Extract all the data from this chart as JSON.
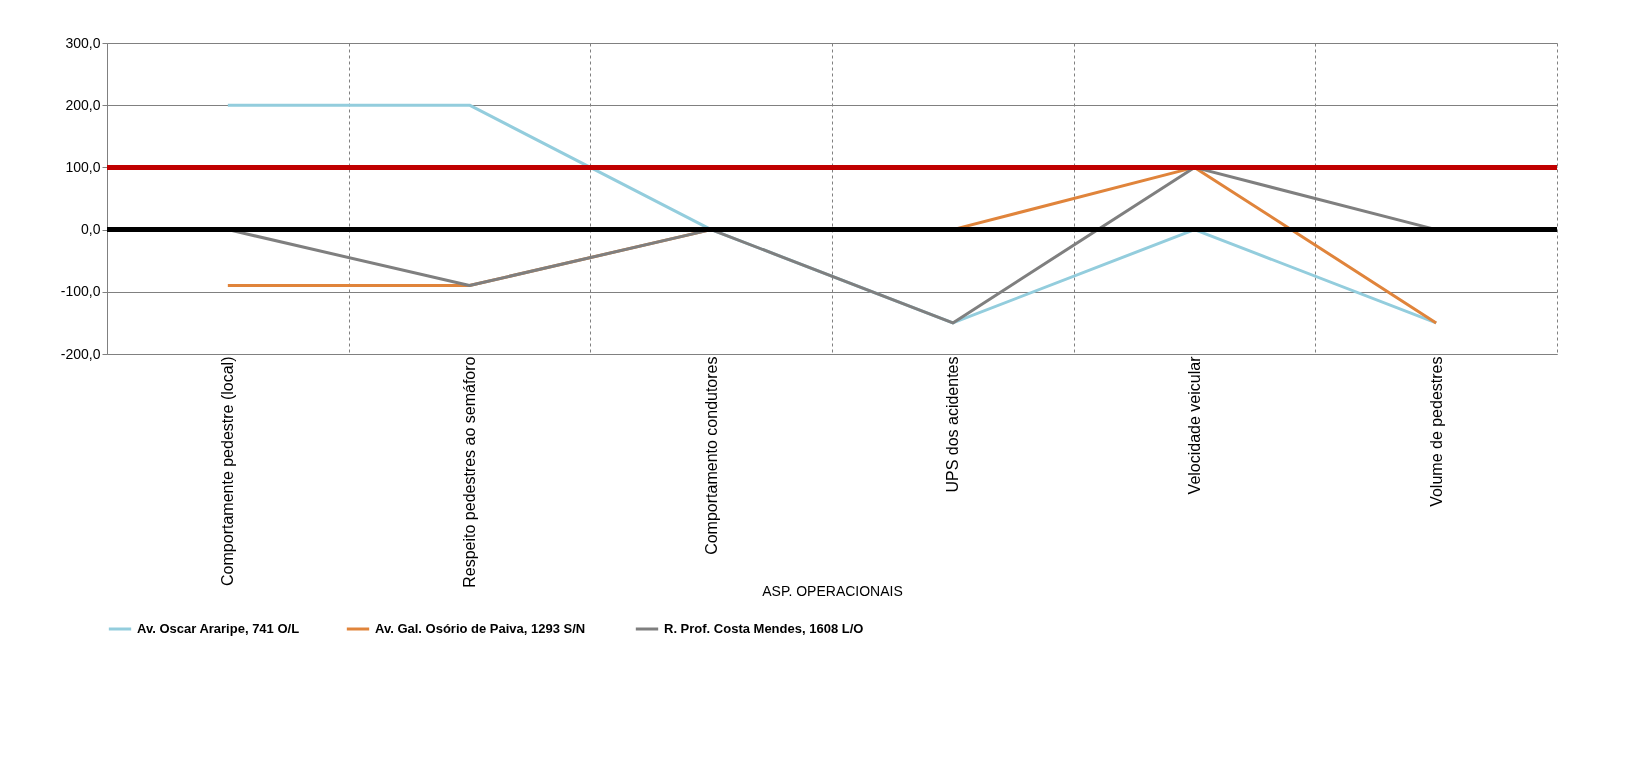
{
  "chart_data": {
    "type": "line",
    "xlabel": "ASP. OPERACIONAIS",
    "categories": [
      "Comportamente pedestre (local)",
      "Respeito pedestres ao semáforo",
      "Comportamento condutores",
      "UPS dos acidentes",
      "Velocidade veicular",
      "Volume de pedestres"
    ],
    "series": [
      {
        "name": "Av. Oscar Araripe, 741 O/L",
        "color": "#93cddd",
        "values": [
          200,
          200,
          0,
          -150,
          0,
          -150
        ]
      },
      {
        "name": "Av. Gal. Osório de Paiva,  1293 S/N",
        "color": "#e0843b",
        "values": [
          -90,
          -90,
          0,
          0,
          100,
          -150
        ]
      },
      {
        "name": "R. Prof. Costa Mendes, 1608 L/O",
        "color": "#7f7f7f",
        "values": [
          0,
          -90,
          0,
          -150,
          100,
          0
        ]
      }
    ],
    "ylim": [
      -200,
      300
    ],
    "yticks": [
      {
        "value": -200,
        "label": "-200,0"
      },
      {
        "value": -100,
        "label": "-100,0"
      },
      {
        "value": 0,
        "label": "0,0"
      },
      {
        "value": 100,
        "label": "100,0"
      },
      {
        "value": 200,
        "label": "200,0"
      },
      {
        "value": 300,
        "label": "300,0"
      }
    ],
    "ref_lines": [
      {
        "axis": "y",
        "value": 100,
        "color": "#c00000"
      },
      {
        "axis": "y",
        "value": 0,
        "color": "#000000"
      }
    ],
    "grid": true,
    "legend": "bottom",
    "marker": "none",
    "line_style": "solid"
  }
}
